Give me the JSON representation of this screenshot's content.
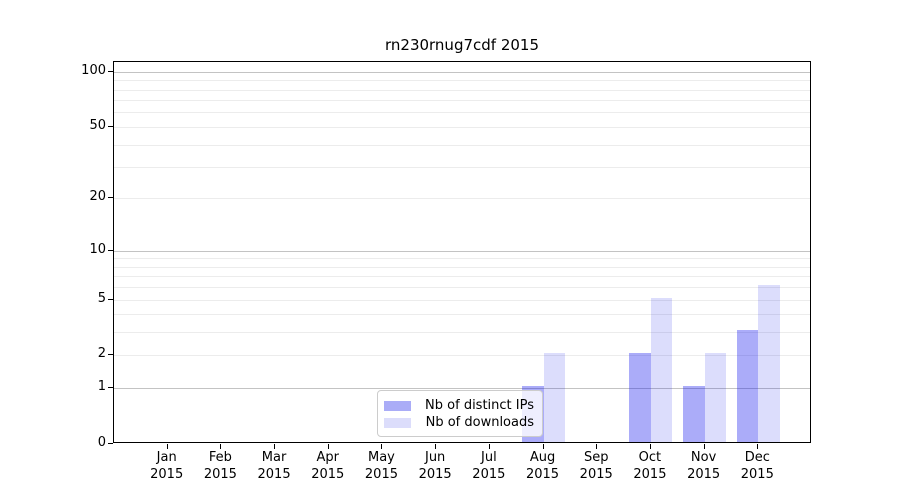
{
  "figure": {
    "title": "rn230rnug7cdf 2015"
  },
  "legend": {
    "items": [
      {
        "label": "Nb of distinct IPs",
        "swatch_color": "#aaacf7"
      },
      {
        "label": "Nb of downloads",
        "swatch_color": "#dcddfb"
      }
    ]
  },
  "chart_data": {
    "type": "bar",
    "title": "rn230rnug7cdf 2015",
    "categories": [
      "Jan",
      "Feb",
      "Mar",
      "Apr",
      "May",
      "Jun",
      "Jul",
      "Aug",
      "Sep",
      "Oct",
      "Nov",
      "Dec"
    ],
    "category_year": "2015",
    "series": [
      {
        "name": "Nb of distinct IPs",
        "fill": "rgba(13, 18, 237, 0.35)",
        "swatch_color": "#aaacf7",
        "values": [
          0,
          0,
          0,
          0,
          0,
          0,
          0,
          1,
          0,
          2,
          1,
          3
        ]
      },
      {
        "name": "Nb of downloads",
        "fill": "rgba(13, 18, 237, 0.145)",
        "swatch_color": "#dcddfb",
        "values": [
          0,
          0,
          0,
          0,
          0,
          0,
          0,
          2,
          0,
          5,
          2,
          6
        ]
      }
    ],
    "xlabel": "",
    "ylabel": "",
    "y_scale": "log2(1+value), linear below 1 (0 at baseline)",
    "y_tick_labels": [
      "0",
      "1",
      "2",
      "5",
      "10",
      "20",
      "50",
      "100"
    ],
    "y_tick_values": [
      0,
      1,
      2,
      5,
      10,
      20,
      50,
      100
    ],
    "y_major_gridlines": [
      1,
      10,
      100
    ],
    "y_minor_gridlines": [
      2,
      3,
      4,
      5,
      6,
      7,
      8,
      9,
      20,
      30,
      40,
      50,
      60,
      70,
      80,
      90
    ],
    "ylim": [
      0,
      113
    ],
    "grid": true,
    "legend_position": "bottom-center-inside",
    "colors": {
      "grid_major": "#c3c3c3",
      "grid_minor": "#ececec",
      "spine": "#000000",
      "text": "#000000"
    }
  }
}
